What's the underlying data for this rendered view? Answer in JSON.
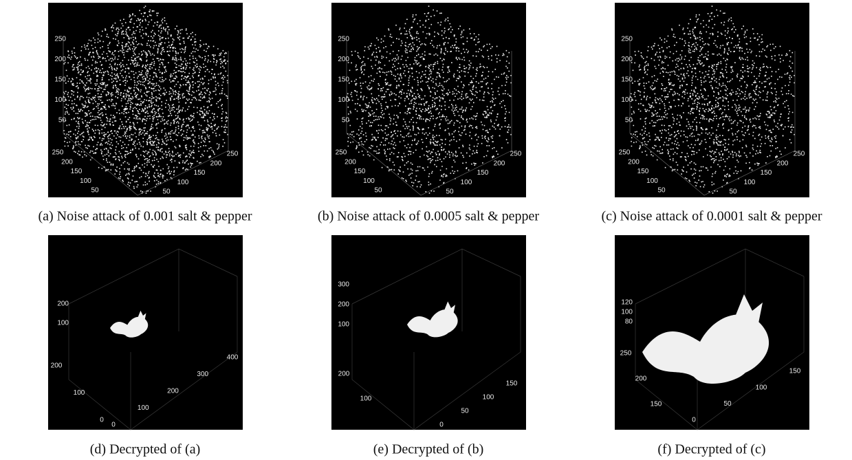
{
  "panels": [
    {
      "caption": "(a) Noise attack of 0.001 salt & pepper",
      "z_ticks": [
        250,
        200,
        150,
        100,
        50
      ],
      "y_ticks": [
        250,
        200,
        150,
        100,
        50
      ],
      "x_ticks": [
        50,
        100,
        150,
        200,
        250
      ]
    },
    {
      "caption": "(b) Noise attack of 0.0005 salt & pepper",
      "z_ticks": [
        250,
        200,
        150,
        100,
        50
      ],
      "y_ticks": [
        250,
        200,
        150,
        100,
        50
      ],
      "x_ticks": [
        50,
        100,
        150,
        200,
        250
      ]
    },
    {
      "caption": "(c) Noise attack of 0.0001 salt & pepper",
      "z_ticks": [
        250,
        200,
        150,
        100,
        50
      ],
      "y_ticks": [
        250,
        200,
        150,
        100,
        50
      ],
      "x_ticks": [
        50,
        100,
        150,
        200,
        250
      ]
    },
    {
      "caption": "(d) Decrypted of (a)",
      "z_ticks": [
        200,
        100
      ],
      "y_ticks": [
        200,
        100,
        0
      ],
      "x_ticks": [
        0,
        100,
        200,
        300,
        400
      ]
    },
    {
      "caption": "(e) Decrypted of (b)",
      "z_ticks": [
        300,
        200,
        100
      ],
      "y_ticks": [
        200,
        100
      ],
      "x_ticks": [
        0,
        50,
        100,
        150
      ]
    },
    {
      "caption": "(f) Decrypted of (c)",
      "z_ticks": [
        120,
        100,
        80
      ],
      "y_ticks": [
        250,
        200,
        150
      ],
      "x_ticks": [
        0,
        50,
        100,
        150
      ]
    }
  ]
}
